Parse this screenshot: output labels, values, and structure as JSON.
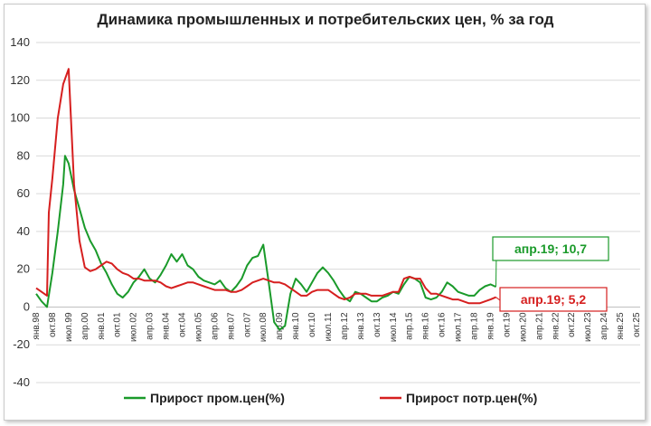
{
  "chart_data": {
    "type": "line",
    "title": "Динамика промышленных и потребительских цен, % за год",
    "xlabel": "",
    "ylabel": "",
    "ylim": [
      -40,
      140
    ],
    "yticks": [
      -40,
      -20,
      0,
      20,
      40,
      60,
      80,
      100,
      120,
      140
    ],
    "grid": "horizontal",
    "legend": "bottom",
    "x_start": "янв.98",
    "x_end": "окт.25",
    "x_tick_labels": [
      "янв.98",
      "окт.98",
      "июл.99",
      "апр.00",
      "янв.01",
      "окт.01",
      "июл.02",
      "апр.03",
      "янв.04",
      "окт.04",
      "июл.05",
      "апр.06",
      "янв.07",
      "окт.07",
      "июл.08",
      "апр.09",
      "янв.10",
      "окт.10",
      "июл.11",
      "апр.12",
      "янв.13",
      "окт.13",
      "июл.14",
      "апр.15",
      "янв.16",
      "окт.16",
      "июл.17",
      "апр.18",
      "янв.19",
      "окт.19",
      "июл.20",
      "апр.21",
      "янв.22",
      "окт.22",
      "июл.23",
      "апр.24",
      "янв.25",
      "окт.25"
    ],
    "series": [
      {
        "name": "Прирост пром.цен(%)",
        "color": "#1a9a2a",
        "points": [
          [
            "янв.98",
            7
          ],
          [
            "апр.98",
            3
          ],
          [
            "июл.98",
            0
          ],
          [
            "окт.98",
            18
          ],
          [
            "янв.99",
            40
          ],
          [
            "апр.99",
            65
          ],
          [
            "май.99",
            80
          ],
          [
            "июл.99",
            76
          ],
          [
            "окт.99",
            62
          ],
          [
            "янв.00",
            52
          ],
          [
            "апр.00",
            42
          ],
          [
            "июл.00",
            35
          ],
          [
            "окт.00",
            30
          ],
          [
            "янв.01",
            23
          ],
          [
            "апр.01",
            18
          ],
          [
            "июл.01",
            12
          ],
          [
            "окт.01",
            7
          ],
          [
            "янв.02",
            5
          ],
          [
            "апр.02",
            8
          ],
          [
            "июл.02",
            13
          ],
          [
            "окт.02",
            16
          ],
          [
            "янв.03",
            20
          ],
          [
            "апр.03",
            15
          ],
          [
            "июл.03",
            13
          ],
          [
            "окт.03",
            17
          ],
          [
            "янв.04",
            22
          ],
          [
            "апр.04",
            28
          ],
          [
            "июл.04",
            24
          ],
          [
            "окт.04",
            28
          ],
          [
            "янв.05",
            22
          ],
          [
            "апр.05",
            20
          ],
          [
            "июл.05",
            16
          ],
          [
            "окт.05",
            14
          ],
          [
            "янв.06",
            13
          ],
          [
            "апр.06",
            12
          ],
          [
            "июл.06",
            14
          ],
          [
            "окт.06",
            10
          ],
          [
            "янв.07",
            8
          ],
          [
            "апр.07",
            11
          ],
          [
            "июл.07",
            15
          ],
          [
            "окт.07",
            22
          ],
          [
            "янв.08",
            26
          ],
          [
            "апр.08",
            27
          ],
          [
            "июл.08",
            33
          ],
          [
            "окт.08",
            13
          ],
          [
            "янв.09",
            -8
          ],
          [
            "апр.09",
            -12
          ],
          [
            "июл.09",
            -10
          ],
          [
            "окт.09",
            7
          ],
          [
            "янв.10",
            15
          ],
          [
            "апр.10",
            12
          ],
          [
            "июл.10",
            8
          ],
          [
            "окт.10",
            13
          ],
          [
            "янв.11",
            18
          ],
          [
            "апр.11",
            21
          ],
          [
            "июл.11",
            18
          ],
          [
            "окт.11",
            14
          ],
          [
            "янв.12",
            9
          ],
          [
            "апр.12",
            5
          ],
          [
            "июл.12",
            3
          ],
          [
            "окт.12",
            8
          ],
          [
            "янв.13",
            7
          ],
          [
            "апр.13",
            5
          ],
          [
            "июл.13",
            3
          ],
          [
            "окт.13",
            3
          ],
          [
            "янв.14",
            5
          ],
          [
            "апр.14",
            6
          ],
          [
            "июл.14",
            8
          ],
          [
            "окт.14",
            7
          ],
          [
            "янв.15",
            12
          ],
          [
            "апр.15",
            16
          ],
          [
            "июл.15",
            15
          ],
          [
            "окт.15",
            13
          ],
          [
            "янв.16",
            5
          ],
          [
            "апр.16",
            4
          ],
          [
            "июл.16",
            5
          ],
          [
            "окт.16",
            8
          ],
          [
            "янв.17",
            13
          ],
          [
            "апр.17",
            11
          ],
          [
            "июл.17",
            8
          ],
          [
            "окт.17",
            7
          ],
          [
            "янв.18",
            6
          ],
          [
            "апр.18",
            6
          ],
          [
            "июл.18",
            9
          ],
          [
            "окт.18",
            11
          ],
          [
            "янв.19",
            12
          ],
          [
            "апр.19",
            10.7
          ]
        ]
      },
      {
        "name": "Прирост потр.цен(%)",
        "color": "#d61f1f",
        "points": [
          [
            "янв.98",
            10
          ],
          [
            "апр.98",
            8
          ],
          [
            "июл.98",
            6
          ],
          [
            "авг.98",
            50
          ],
          [
            "окт.98",
            68
          ],
          [
            "янв.99",
            100
          ],
          [
            "апр.99",
            118
          ],
          [
            "июл.99",
            126
          ],
          [
            "окт.99",
            65
          ],
          [
            "янв.00",
            35
          ],
          [
            "апр.00",
            21
          ],
          [
            "июл.00",
            19
          ],
          [
            "окт.00",
            20
          ],
          [
            "янв.01",
            22
          ],
          [
            "апр.01",
            24
          ],
          [
            "июл.01",
            23
          ],
          [
            "окт.01",
            20
          ],
          [
            "янв.02",
            18
          ],
          [
            "апр.02",
            17
          ],
          [
            "июл.02",
            15
          ],
          [
            "окт.02",
            15
          ],
          [
            "янв.03",
            14
          ],
          [
            "апр.03",
            14
          ],
          [
            "июл.03",
            14
          ],
          [
            "окт.03",
            13
          ],
          [
            "янв.04",
            11
          ],
          [
            "апр.04",
            10
          ],
          [
            "июл.04",
            11
          ],
          [
            "окт.04",
            12
          ],
          [
            "янв.05",
            13
          ],
          [
            "апр.05",
            13
          ],
          [
            "июл.05",
            12
          ],
          [
            "окт.05",
            11
          ],
          [
            "янв.06",
            10
          ],
          [
            "апр.06",
            9
          ],
          [
            "июл.06",
            9
          ],
          [
            "окт.06",
            9
          ],
          [
            "янв.07",
            8
          ],
          [
            "апр.07",
            8
          ],
          [
            "июл.07",
            9
          ],
          [
            "окт.07",
            11
          ],
          [
            "янв.08",
            13
          ],
          [
            "апр.08",
            14
          ],
          [
            "июл.08",
            15
          ],
          [
            "окт.08",
            14
          ],
          [
            "янв.09",
            13
          ],
          [
            "апр.09",
            13
          ],
          [
            "июл.09",
            12
          ],
          [
            "окт.09",
            10
          ],
          [
            "янв.10",
            8
          ],
          [
            "апр.10",
            6
          ],
          [
            "июл.10",
            6
          ],
          [
            "окт.10",
            8
          ],
          [
            "янв.11",
            9
          ],
          [
            "апр.11",
            9
          ],
          [
            "июл.11",
            9
          ],
          [
            "окт.11",
            7
          ],
          [
            "янв.12",
            5
          ],
          [
            "апр.12",
            4
          ],
          [
            "июл.12",
            5
          ],
          [
            "окт.12",
            7
          ],
          [
            "янв.13",
            7
          ],
          [
            "апр.13",
            7
          ],
          [
            "июл.13",
            6
          ],
          [
            "окт.13",
            6
          ],
          [
            "янв.14",
            6
          ],
          [
            "апр.14",
            7
          ],
          [
            "июл.14",
            8
          ],
          [
            "окт.14",
            8
          ],
          [
            "янв.15",
            15
          ],
          [
            "апр.15",
            16
          ],
          [
            "июл.15",
            15
          ],
          [
            "окт.15",
            15
          ],
          [
            "янв.16",
            10
          ],
          [
            "апр.16",
            7
          ],
          [
            "июл.16",
            7
          ],
          [
            "окт.16",
            6
          ],
          [
            "янв.17",
            5
          ],
          [
            "апр.17",
            4
          ],
          [
            "июл.17",
            4
          ],
          [
            "окт.17",
            3
          ],
          [
            "янв.18",
            2
          ],
          [
            "апр.18",
            2
          ],
          [
            "июл.18",
            2
          ],
          [
            "окт.18",
            3
          ],
          [
            "янв.19",
            4
          ],
          [
            "апр.19",
            5.2
          ]
        ]
      }
    ],
    "annotations": [
      {
        "text": "апр.19; 10,7",
        "series": "Прирост пром.цен(%)",
        "color": "#1a9a2a"
      },
      {
        "text": "апр.19; 5,2",
        "series": "Прирост потр.цен(%)",
        "color": "#d61f1f"
      }
    ]
  }
}
